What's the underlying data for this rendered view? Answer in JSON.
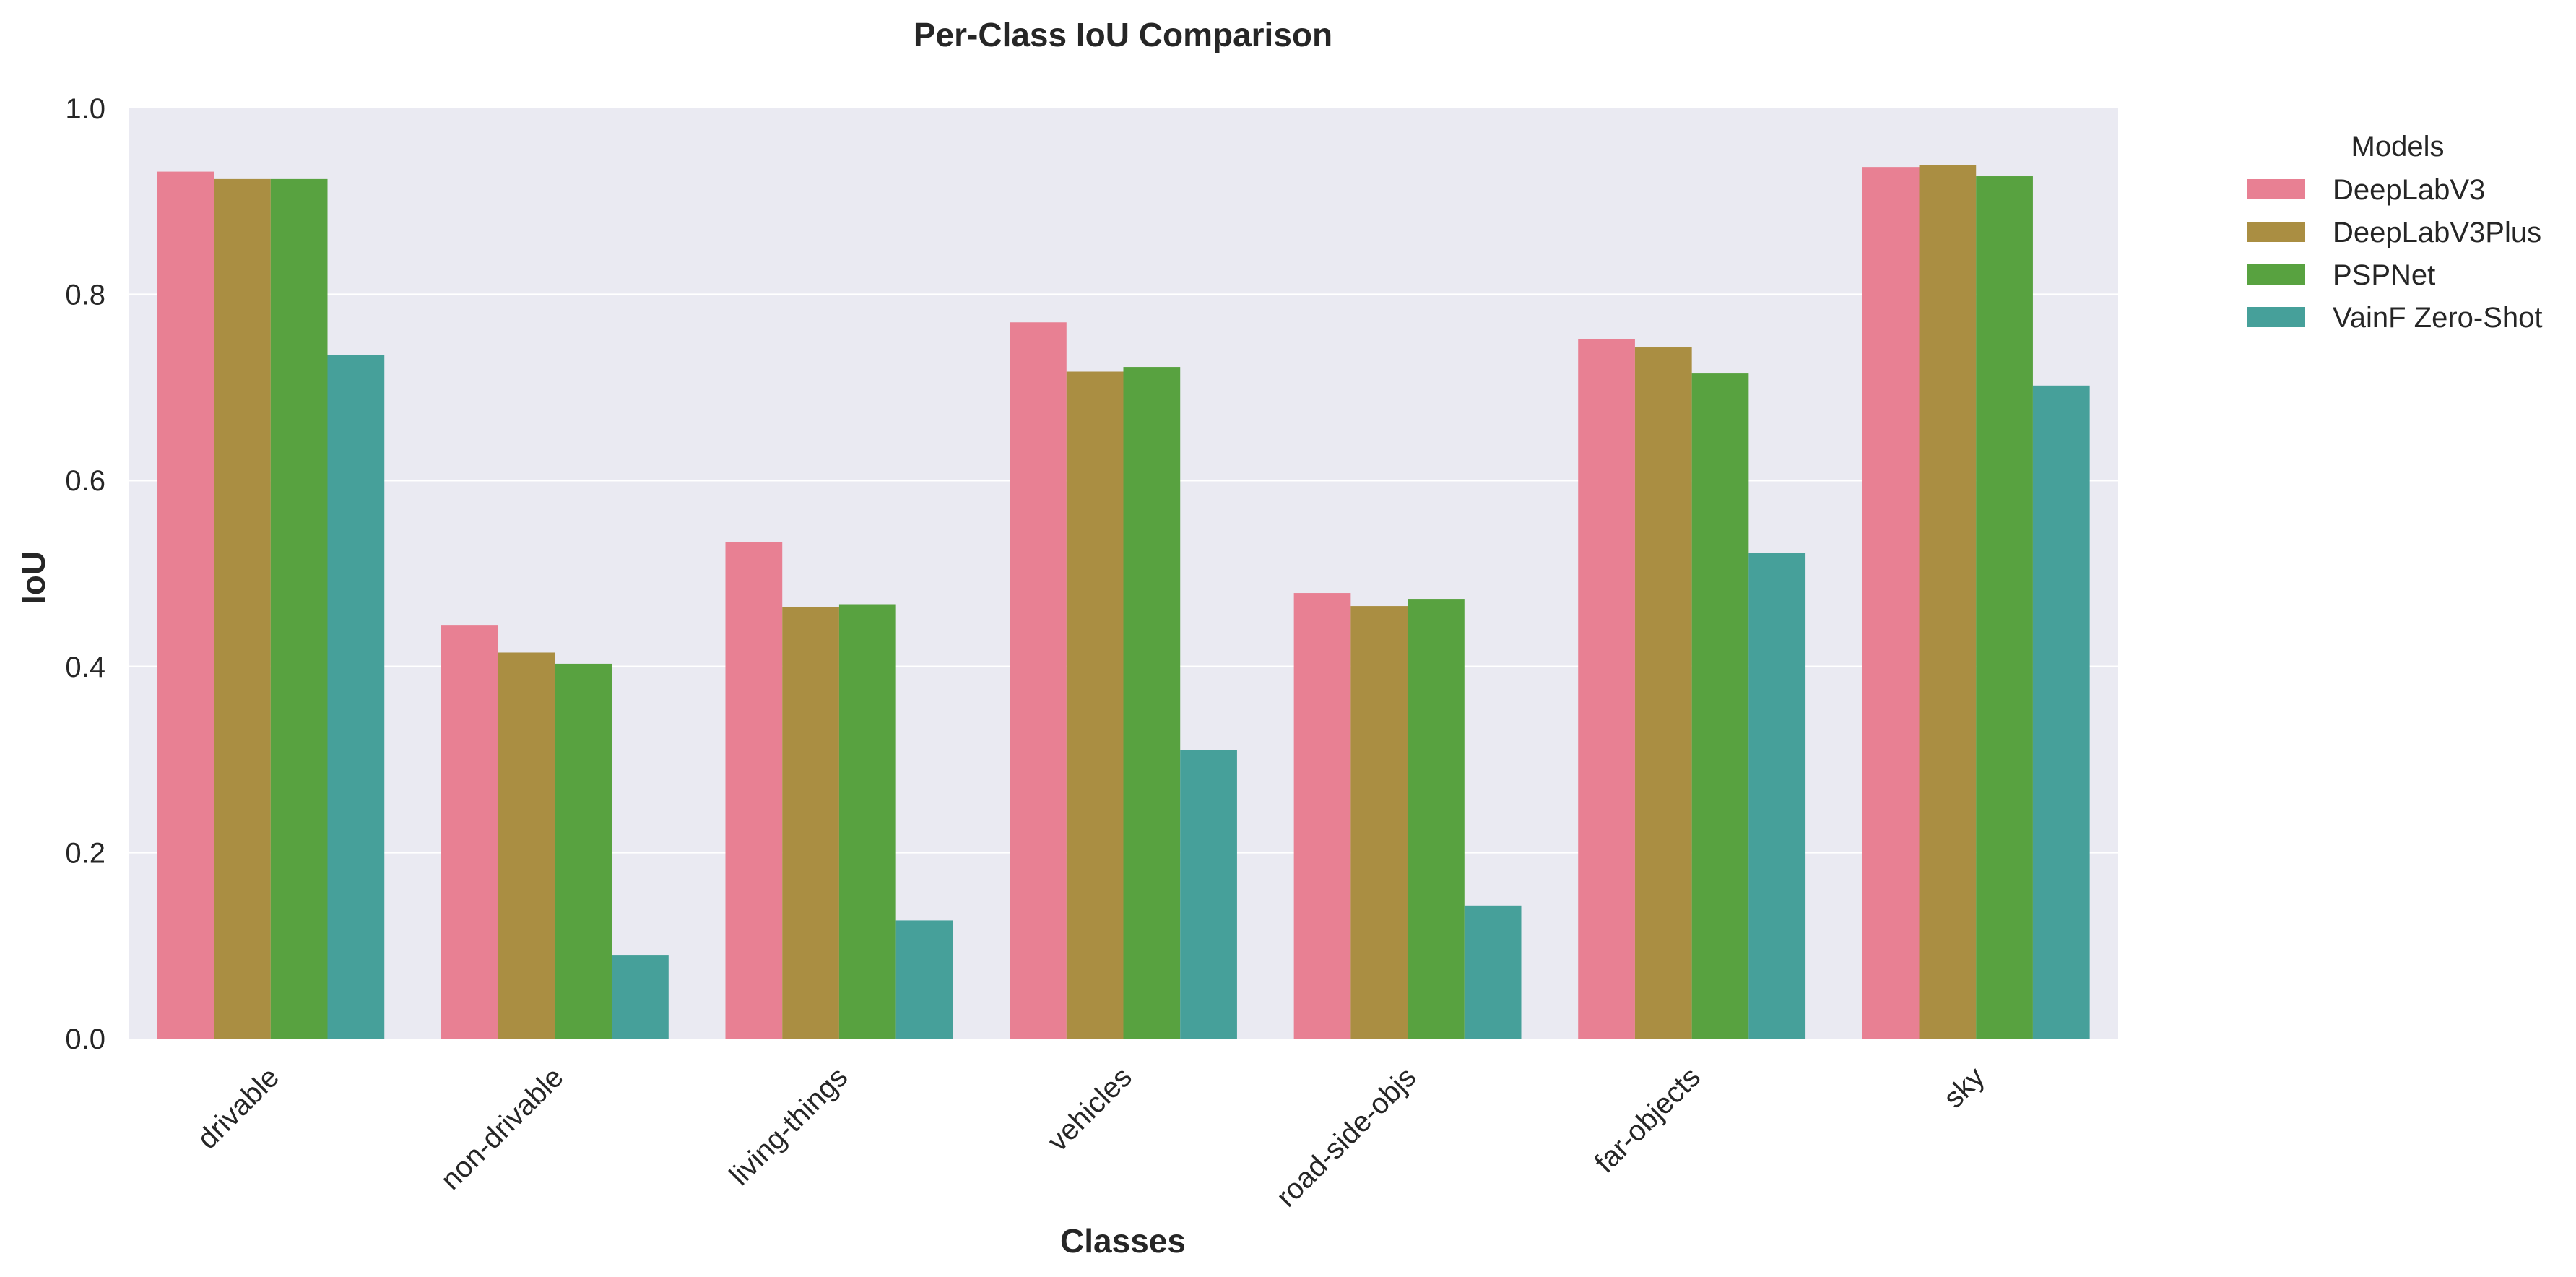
{
  "chart_data": {
    "type": "bar",
    "title": "Per-Class IoU Comparison",
    "xlabel": "Classes",
    "ylabel": "IoU",
    "ylim": [
      0,
      1.0
    ],
    "yticks": [
      "0.0",
      "0.2",
      "0.4",
      "0.6",
      "0.8",
      "1.0"
    ],
    "grid": true,
    "legend_title": "Models",
    "legend_position": "outside-right-top",
    "categories": [
      "drivable",
      "non-drivable",
      "living-things",
      "vehicles",
      "road-side-objs",
      "far-objects",
      "sky"
    ],
    "series": [
      {
        "name": "DeepLabV3",
        "color": "#e88093",
        "values": [
          0.932,
          0.444,
          0.534,
          0.77,
          0.479,
          0.752,
          0.937
        ]
      },
      {
        "name": "DeepLabV3Plus",
        "color": "#aa8e42",
        "values": [
          0.924,
          0.415,
          0.464,
          0.717,
          0.465,
          0.743,
          0.939
        ]
      },
      {
        "name": "PSPNet",
        "color": "#58a240",
        "values": [
          0.924,
          0.403,
          0.467,
          0.722,
          0.472,
          0.715,
          0.927
        ]
      },
      {
        "name": "VainF Zero-Shot",
        "color": "#46a09a",
        "values": [
          0.735,
          0.09,
          0.127,
          0.31,
          0.143,
          0.522,
          0.702
        ]
      }
    ]
  }
}
